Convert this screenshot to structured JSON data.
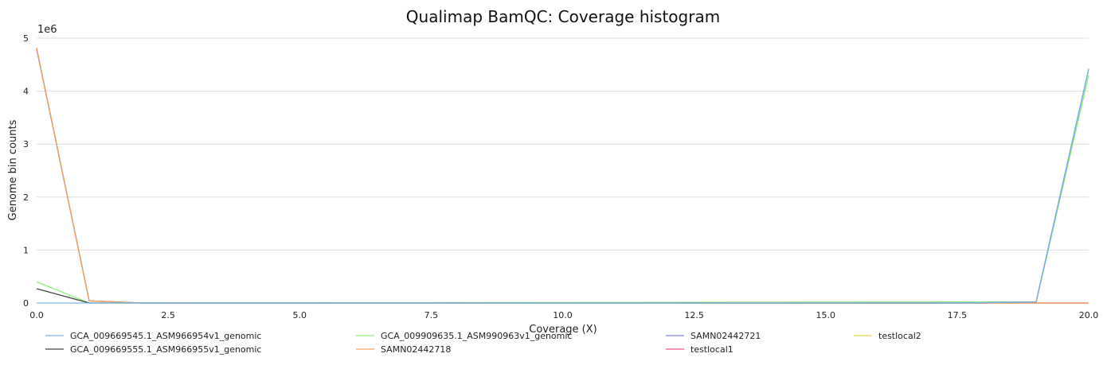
{
  "chart_data": {
    "type": "line",
    "title": "Qualimap BamQC: Coverage histogram",
    "xlabel": "Coverage (X)",
    "ylabel": "Genome bin counts",
    "y_multiplier_label": "1e6",
    "xlim": [
      0,
      20
    ],
    "ylim": [
      0,
      5
    ],
    "x_ticks": [
      0,
      2.5,
      5,
      7.5,
      10,
      12.5,
      15,
      17.5,
      20
    ],
    "x_tick_labels": [
      "0.0",
      "2.5",
      "5.0",
      "7.5",
      "10.0",
      "12.5",
      "15.0",
      "17.5",
      "20.0"
    ],
    "y_ticks": [
      0,
      1,
      2,
      3,
      4,
      5
    ],
    "y_tick_labels": [
      "0",
      "1",
      "2",
      "3",
      "4",
      "5"
    ],
    "grid": "horizontal",
    "legend_position": "bottom",
    "series": [
      {
        "name": "GCA_009669545.1_ASM966954v1_genomic",
        "color": "#7cb5ec",
        "points": [
          [
            0,
            0.0
          ],
          [
            1,
            0.0
          ],
          [
            17.5,
            0.0
          ],
          [
            19,
            0.02
          ],
          [
            20,
            4.42
          ]
        ]
      },
      {
        "name": "GCA_009669555.1_ASM966955v1_genomic",
        "color": "#434348",
        "points": [
          [
            0,
            0.27
          ],
          [
            1,
            0.0
          ],
          [
            17.5,
            0.0
          ],
          [
            19,
            0.02
          ],
          [
            20,
            4.42
          ]
        ]
      },
      {
        "name": "GCA_009909635.1_ASM990963v1_genomic",
        "color": "#90ed7d",
        "points": [
          [
            0,
            0.4
          ],
          [
            1,
            0.0
          ],
          [
            17.5,
            0.02
          ],
          [
            19,
            0.02
          ],
          [
            20,
            4.3
          ]
        ]
      },
      {
        "name": "SAMN02442718",
        "color": "#f7a35c",
        "points": [
          [
            0,
            4.82
          ],
          [
            1,
            0.04
          ],
          [
            2,
            0.0
          ],
          [
            20,
            0.0
          ]
        ]
      },
      {
        "name": "SAMN02442721",
        "color": "#8085e9",
        "points": [
          [
            0,
            4.8
          ],
          [
            1,
            0.04
          ],
          [
            2,
            0.0
          ],
          [
            20,
            0.0
          ]
        ]
      },
      {
        "name": "testlocal1",
        "color": "#f15c80",
        "points": [
          [
            0,
            4.8
          ],
          [
            1,
            0.04
          ],
          [
            2,
            0.0
          ],
          [
            20,
            0.0
          ]
        ]
      },
      {
        "name": "testlocal2",
        "color": "#e4d354",
        "points": [
          [
            0,
            4.8
          ],
          [
            1,
            0.04
          ],
          [
            2,
            0.0
          ],
          [
            20,
            0.0
          ]
        ]
      }
    ]
  }
}
